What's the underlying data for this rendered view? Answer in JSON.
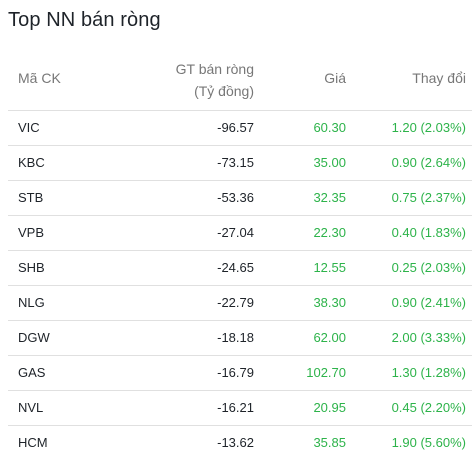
{
  "title": "Top NN bán ròng",
  "columns": {
    "code": "Mã CK",
    "gt_line1": "GT bán ròng",
    "gt_line2": "(Tỷ đồng)",
    "price": "Giá",
    "change": "Thay đổi"
  },
  "colors": {
    "positive": "#2db34a",
    "text": "#1e2329",
    "header_text": "#777777",
    "divider": "#e0e0e0"
  },
  "rows": [
    {
      "code": "VIC",
      "gt": "-96.57",
      "price": "60.30",
      "change": "1.20 (2.03%)"
    },
    {
      "code": "KBC",
      "gt": "-73.15",
      "price": "35.00",
      "change": "0.90 (2.64%)"
    },
    {
      "code": "STB",
      "gt": "-53.36",
      "price": "32.35",
      "change": "0.75 (2.37%)"
    },
    {
      "code": "VPB",
      "gt": "-27.04",
      "price": "22.30",
      "change": "0.40 (1.83%)"
    },
    {
      "code": "SHB",
      "gt": "-24.65",
      "price": "12.55",
      "change": "0.25 (2.03%)"
    },
    {
      "code": "NLG",
      "gt": "-22.79",
      "price": "38.30",
      "change": "0.90 (2.41%)"
    },
    {
      "code": "DGW",
      "gt": "-18.18",
      "price": "62.00",
      "change": "2.00 (3.33%)"
    },
    {
      "code": "GAS",
      "gt": "-16.79",
      "price": "102.70",
      "change": "1.30 (1.28%)"
    },
    {
      "code": "NVL",
      "gt": "-16.21",
      "price": "20.95",
      "change": "0.45 (2.20%)"
    },
    {
      "code": "HCM",
      "gt": "-13.62",
      "price": "35.85",
      "change": "1.90 (5.60%)"
    }
  ]
}
